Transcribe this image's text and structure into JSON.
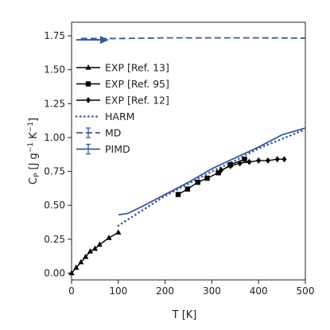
{
  "chart_data": {
    "type": "line",
    "xlabel": "T [K]",
    "ylabel_parts": {
      "c": "C",
      "sub": "P",
      "open": " [J g",
      "exp1": "−1",
      "mid": " K",
      "exp2": "−1",
      "close": "]"
    },
    "xlim": [
      0,
      500
    ],
    "ylim": [
      -0.05,
      1.85
    ],
    "x_ticks": [
      0,
      100,
      200,
      300,
      400,
      500
    ],
    "y_ticks": [
      0.0,
      0.25,
      0.5,
      0.75,
      1.0,
      1.25,
      1.5,
      1.75
    ],
    "x_tick_labels": [
      "0",
      "100",
      "200",
      "300",
      "400",
      "500"
    ],
    "y_tick_labels": [
      "0.00",
      "0.25",
      "0.50",
      "0.75",
      "1.00",
      "1.25",
      "1.50",
      "1.75"
    ],
    "grid": false,
    "legend_position": "center-left",
    "colors": {
      "exp": "#000000",
      "sim": "#3a5a9a"
    },
    "series": [
      {
        "name": "EXP [Ref. 13]",
        "style": "exp",
        "marker": "triangle",
        "x": [
          0,
          10,
          20,
          30,
          40,
          50,
          60,
          80,
          100
        ],
        "y": [
          0.0,
          0.04,
          0.08,
          0.12,
          0.16,
          0.18,
          0.21,
          0.26,
          0.3
        ]
      },
      {
        "name": "EXP [Ref. 95]",
        "style": "exp",
        "marker": "square",
        "x": [
          228,
          248,
          270,
          290,
          314,
          340,
          370
        ],
        "y": [
          0.58,
          0.62,
          0.67,
          0.7,
          0.74,
          0.8,
          0.84
        ]
      },
      {
        "name": "EXP [Ref. 12]",
        "style": "exp",
        "marker": "diamond",
        "x": [
          320,
          340,
          360,
          380,
          400,
          420,
          440,
          455
        ],
        "y": [
          0.76,
          0.79,
          0.81,
          0.82,
          0.83,
          0.83,
          0.84,
          0.84
        ]
      },
      {
        "name": "HARM",
        "style": "harm",
        "x": [
          100,
          150,
          200,
          250,
          300,
          350,
          400,
          450,
          500
        ],
        "y": [
          0.35,
          0.46,
          0.57,
          0.66,
          0.75,
          0.83,
          0.92,
          0.99,
          1.06
        ]
      },
      {
        "name": "MD",
        "style": "md",
        "x": [
          20,
          100,
          200,
          300,
          400,
          500
        ],
        "y": [
          1.73,
          1.73,
          1.735,
          1.735,
          1.735,
          1.733
        ]
      },
      {
        "name": "PIMD",
        "style": "pimd",
        "x": [
          100,
          120,
          150,
          200,
          250,
          300,
          350,
          400,
          450,
          500
        ],
        "y": [
          0.43,
          0.44,
          0.49,
          0.58,
          0.67,
          0.77,
          0.85,
          0.93,
          1.02,
          1.07
        ]
      }
    ],
    "annotations": [
      {
        "type": "arrow",
        "x_from": 10,
        "x_to": 80,
        "y": 1.72
      }
    ]
  }
}
